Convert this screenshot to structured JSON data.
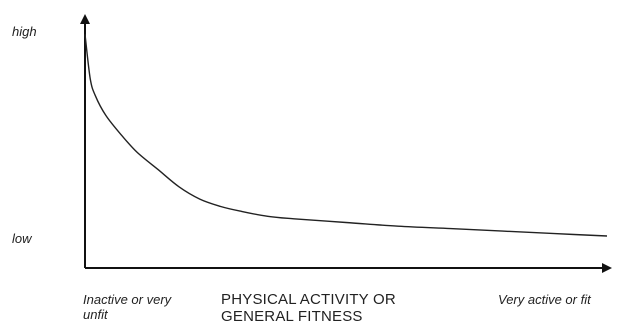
{
  "chart_data": {
    "type": "line",
    "title": "",
    "xlabel": "PHYSICAL ACTIVITY OR\nGENERAL FITNESS",
    "ylabel": "",
    "x_tick_labels": {
      "left": "Inactive or very unfit",
      "right": "Very active or fit"
    },
    "y_tick_labels": {
      "top": "high",
      "bottom": "low"
    },
    "xlim": [
      0,
      1
    ],
    "ylim": [
      0,
      1
    ],
    "grid": false,
    "legend": "none",
    "line_color": "#222222",
    "series": [
      {
        "x": [
          0.0,
          0.01,
          0.02,
          0.04,
          0.07,
          0.1,
          0.14,
          0.18,
          0.22,
          0.26,
          0.3,
          0.35,
          0.4,
          0.5,
          0.6,
          0.7,
          0.8,
          0.9,
          1.0
        ],
        "values": [
          0.95,
          0.77,
          0.7,
          0.62,
          0.54,
          0.47,
          0.4,
          0.33,
          0.28,
          0.25,
          0.23,
          0.21,
          0.2,
          0.185,
          0.17,
          0.16,
          0.15,
          0.14,
          0.13
        ]
      }
    ]
  }
}
